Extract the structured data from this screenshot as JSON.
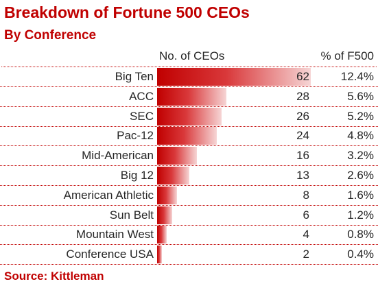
{
  "chart_data": {
    "type": "table",
    "title": "Breakdown of Fortune 500 CEOs",
    "subtitle": "By Conference",
    "source": "Source: Kittleman",
    "columns": [
      "No. of CEOs",
      "% of F500"
    ],
    "categories": [
      "Big  Ten",
      "ACC",
      "SEC",
      "Pac-12",
      "Mid-American",
      "Big 12",
      "American Athletic",
      "Sun Belt",
      "Mountain West",
      "Conference USA"
    ],
    "counts": [
      62,
      28,
      26,
      24,
      16,
      13,
      8,
      6,
      4,
      2
    ],
    "percents": [
      "12.4%",
      "5.6%",
      "5.2%",
      "4.8%",
      "3.2%",
      "2.6%",
      "1.6%",
      "1.2%",
      "0.8%",
      "0.4%"
    ],
    "bar_max": 62
  },
  "colors": {
    "accent": "#c00000",
    "text": "#262626"
  }
}
